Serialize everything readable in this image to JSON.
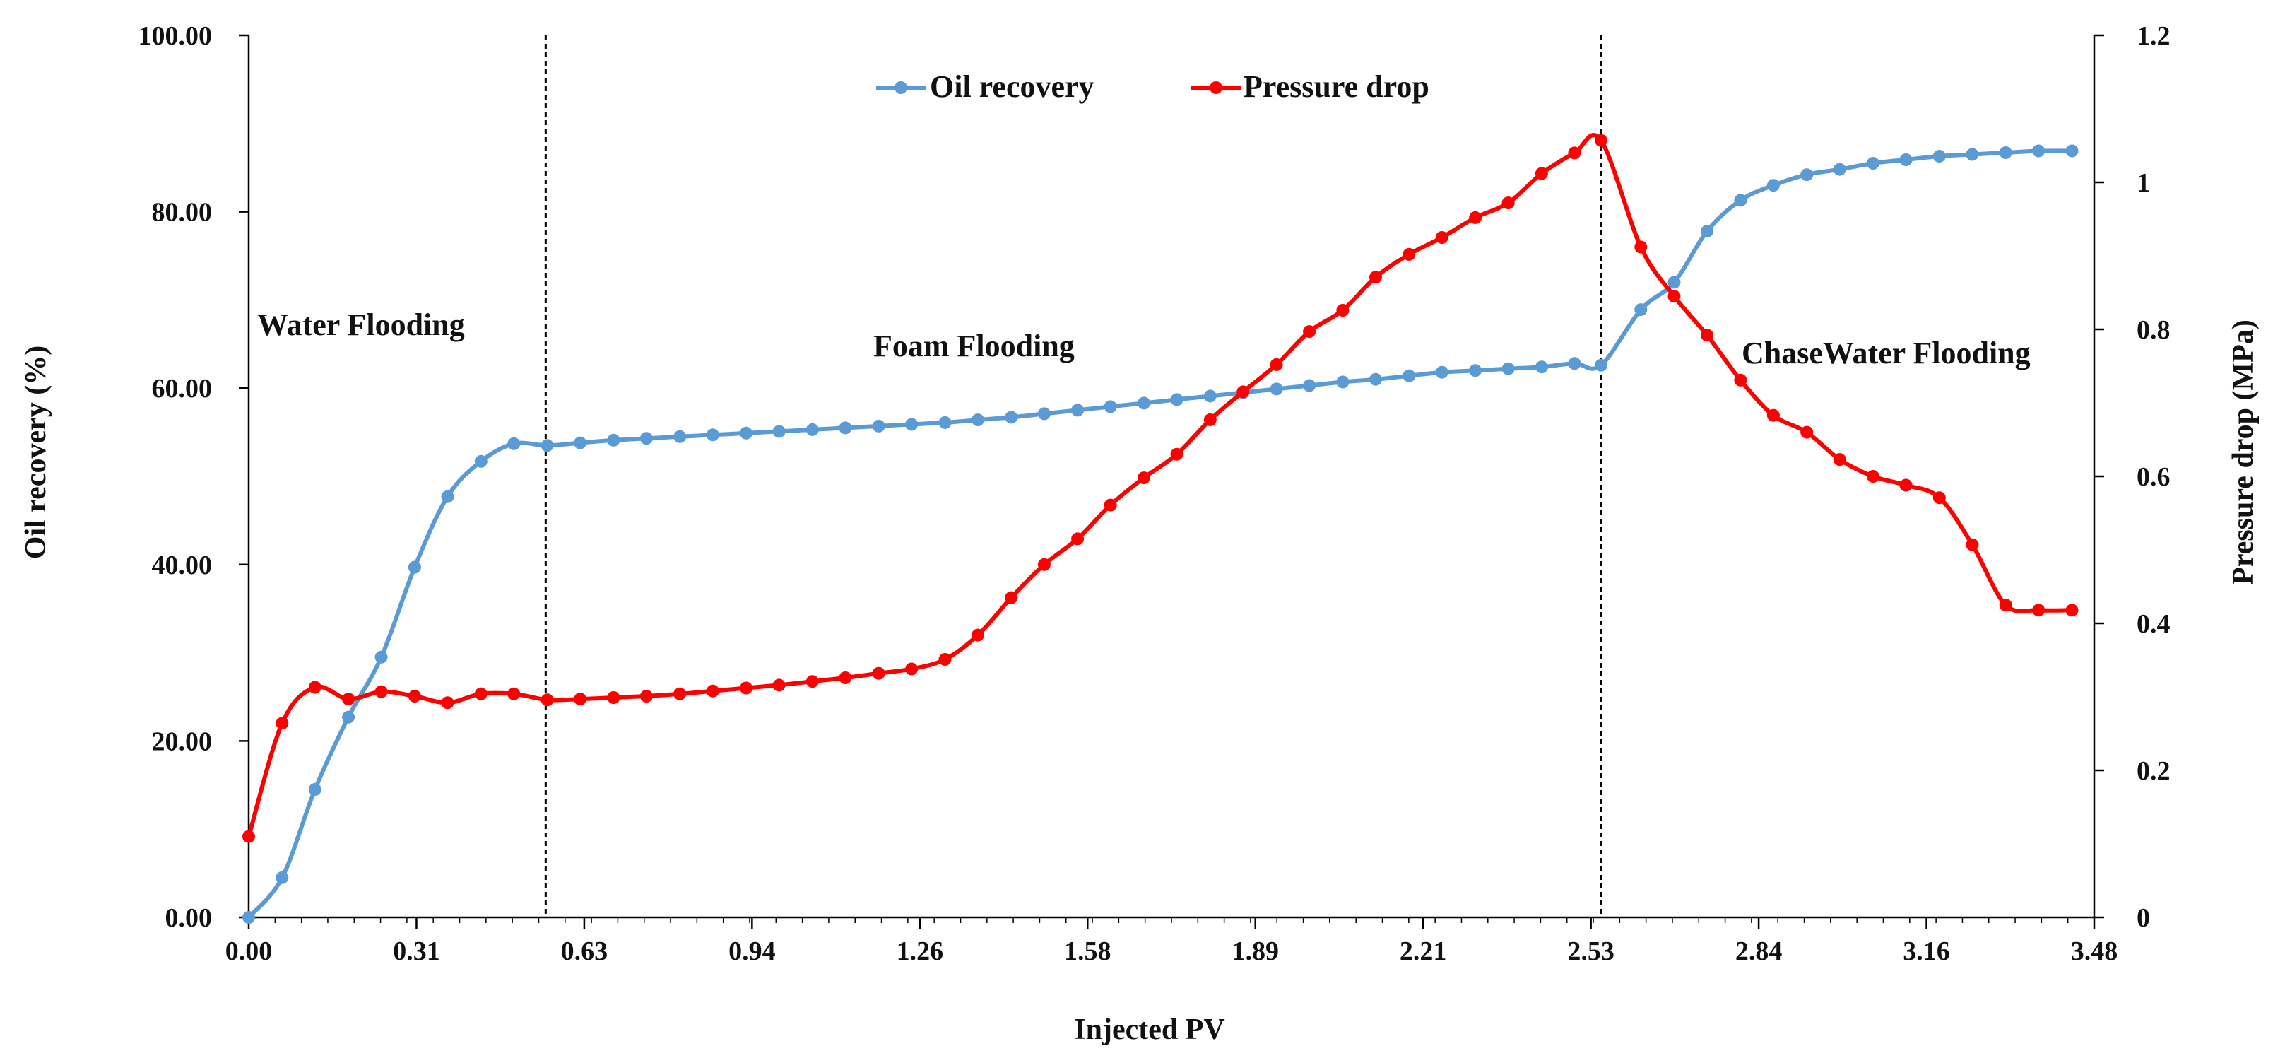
{
  "chart_data": {
    "type": "line",
    "xlabel": "Injected PV",
    "ylabel": "Oil recovery (%)",
    "y2label": "Pressure drop (MPa)",
    "xlim": [
      0,
      3.48
    ],
    "ylim": [
      0,
      100
    ],
    "y2lim": [
      0,
      1.2
    ],
    "x_tick_labels": [
      "0.00",
      "0.31",
      "0.63",
      "0.94",
      "1.26",
      "1.58",
      "1.89",
      "2.21",
      "2.53",
      "2.84",
      "3.16",
      "3.48"
    ],
    "y_tick_labels": [
      "0.00",
      "20.00",
      "40.00",
      "60.00",
      "80.00",
      "100.00"
    ],
    "y2_tick_labels": [
      "0",
      "0.2",
      "0.4",
      "0.6",
      "0.8",
      "1",
      "1.2"
    ],
    "stage_boundaries": [
      0.56,
      2.55
    ],
    "annotations": [
      "Water Flooding",
      "Foam Flooding",
      "ChaseWater Flooding"
    ],
    "legend_position": "top-center",
    "series": [
      {
        "name": "Oil recovery",
        "axis": "left",
        "color": "#5B9BD5",
        "points": [
          [
            0,
            0
          ],
          [
            0.063,
            4.5
          ],
          [
            0.125,
            14.5
          ],
          [
            0.188,
            22.7
          ],
          [
            0.25,
            29.5
          ],
          [
            0.313,
            39.7
          ],
          [
            0.375,
            47.7
          ],
          [
            0.438,
            51.7
          ],
          [
            0.5,
            53.7
          ],
          [
            0.563,
            53.5
          ],
          [
            0.625,
            53.8
          ],
          [
            0.688,
            54.1
          ],
          [
            0.75,
            54.3
          ],
          [
            0.813,
            54.5
          ],
          [
            0.875,
            54.7
          ],
          [
            0.938,
            54.9
          ],
          [
            1.0,
            55.1
          ],
          [
            1.063,
            55.3
          ],
          [
            1.125,
            55.5
          ],
          [
            1.188,
            55.7
          ],
          [
            1.25,
            55.9
          ],
          [
            1.313,
            56.1
          ],
          [
            1.375,
            56.4
          ],
          [
            1.438,
            56.7
          ],
          [
            1.5,
            57.1
          ],
          [
            1.563,
            57.5
          ],
          [
            1.625,
            57.9
          ],
          [
            1.688,
            58.3
          ],
          [
            1.75,
            58.7
          ],
          [
            1.813,
            59.1
          ],
          [
            1.875,
            59.5
          ],
          [
            1.938,
            59.9
          ],
          [
            2.0,
            60.3
          ],
          [
            2.063,
            60.7
          ],
          [
            2.125,
            61.0
          ],
          [
            2.188,
            61.4
          ],
          [
            2.25,
            61.8
          ],
          [
            2.313,
            62.0
          ],
          [
            2.375,
            62.2
          ],
          [
            2.438,
            62.4
          ],
          [
            2.5,
            62.8
          ],
          [
            2.55,
            62.6
          ],
          [
            2.625,
            68.9
          ],
          [
            2.688,
            72.0
          ],
          [
            2.75,
            77.8
          ],
          [
            2.813,
            81.3
          ],
          [
            2.875,
            83.0
          ],
          [
            2.938,
            84.2
          ],
          [
            3.0,
            84.8
          ],
          [
            3.063,
            85.5
          ],
          [
            3.125,
            85.9
          ],
          [
            3.188,
            86.3
          ],
          [
            3.25,
            86.5
          ],
          [
            3.313,
            86.7
          ],
          [
            3.375,
            86.9
          ],
          [
            3.438,
            86.9
          ]
        ]
      },
      {
        "name": "Pressure drop",
        "axis": "right",
        "color": "#FF0000",
        "points": [
          [
            0,
            0.11
          ],
          [
            0.063,
            0.264
          ],
          [
            0.125,
            0.313
          ],
          [
            0.188,
            0.297
          ],
          [
            0.25,
            0.307
          ],
          [
            0.313,
            0.301
          ],
          [
            0.375,
            0.292
          ],
          [
            0.438,
            0.304
          ],
          [
            0.5,
            0.304
          ],
          [
            0.563,
            0.296
          ],
          [
            0.625,
            0.297
          ],
          [
            0.688,
            0.299
          ],
          [
            0.75,
            0.301
          ],
          [
            0.813,
            0.304
          ],
          [
            0.875,
            0.308
          ],
          [
            0.938,
            0.312
          ],
          [
            1.0,
            0.316
          ],
          [
            1.063,
            0.321
          ],
          [
            1.125,
            0.326
          ],
          [
            1.188,
            0.332
          ],
          [
            1.25,
            0.338
          ],
          [
            1.313,
            0.351
          ],
          [
            1.375,
            0.384
          ],
          [
            1.438,
            0.435
          ],
          [
            1.5,
            0.48
          ],
          [
            1.563,
            0.515
          ],
          [
            1.625,
            0.561
          ],
          [
            1.688,
            0.598
          ],
          [
            1.75,
            0.63
          ],
          [
            1.813,
            0.677
          ],
          [
            1.875,
            0.715
          ],
          [
            1.938,
            0.752
          ],
          [
            2.0,
            0.797
          ],
          [
            2.063,
            0.826
          ],
          [
            2.125,
            0.871
          ],
          [
            2.188,
            0.902
          ],
          [
            2.25,
            0.925
          ],
          [
            2.313,
            0.952
          ],
          [
            2.375,
            0.972
          ],
          [
            2.438,
            1.012
          ],
          [
            2.5,
            1.04
          ],
          [
            2.55,
            1.057
          ],
          [
            2.625,
            0.912
          ],
          [
            2.688,
            0.845
          ],
          [
            2.75,
            0.792
          ],
          [
            2.813,
            0.731
          ],
          [
            2.875,
            0.683
          ],
          [
            2.938,
            0.66
          ],
          [
            3.0,
            0.623
          ],
          [
            3.063,
            0.6
          ],
          [
            3.125,
            0.588
          ],
          [
            3.188,
            0.571
          ],
          [
            3.25,
            0.507
          ],
          [
            3.313,
            0.425
          ],
          [
            3.375,
            0.418
          ],
          [
            3.438,
            0.418
          ]
        ]
      }
    ]
  }
}
